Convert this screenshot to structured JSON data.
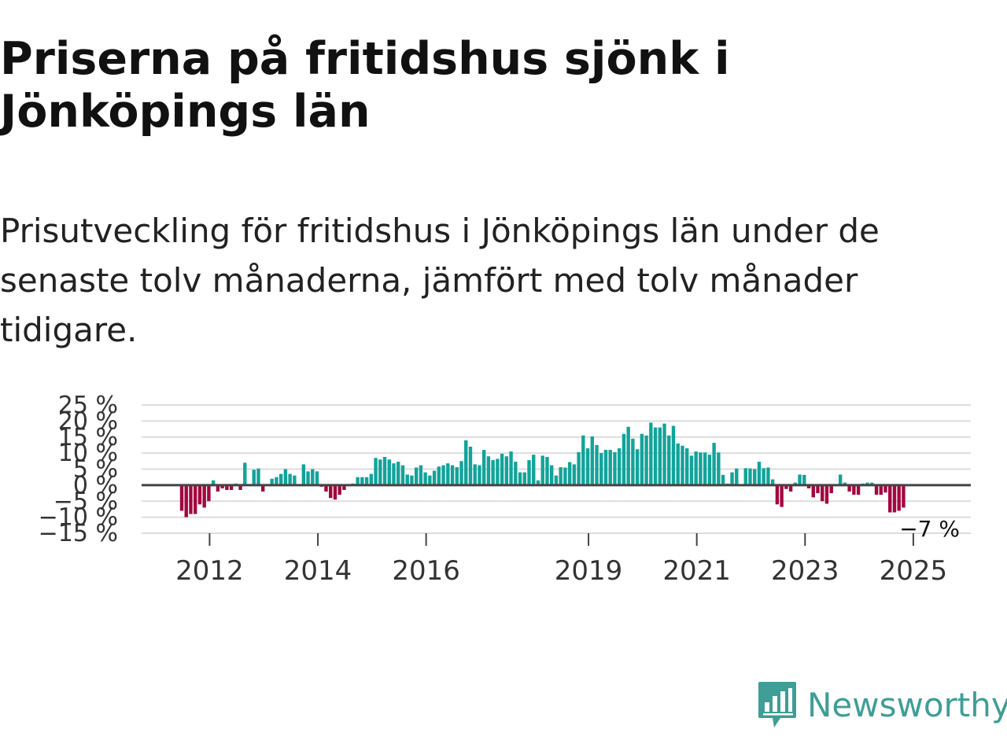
{
  "title": "Priserna på fritidshus sjönk i Jönköpings län",
  "subtitle": "Prisutveckling för fritidshus i Jönköpings län under de senaste tolv månaderna, jämfört med tolv månader tidigare.",
  "brand": {
    "name": "Newsworthy",
    "color": "#3f9e96",
    "icon": "bar-chart-speech-bubble-icon"
  },
  "colors": {
    "positive": "#12a39a",
    "negative": "#a3073f",
    "zero_line": "#444444",
    "grid": "#dddddd"
  },
  "chart_data": {
    "type": "bar",
    "title": "Priserna på fritidshus sjönk i Jönköpings län",
    "xlabel": "",
    "ylabel": "",
    "ylim": [
      -15,
      25
    ],
    "yticks": [
      25,
      20,
      15,
      10,
      5,
      0,
      -5,
      -10,
      -15
    ],
    "ytick_labels": [
      "25 %",
      "20 %",
      "15 %",
      "10 %",
      "5 %",
      "0 %",
      "−5 %",
      "−10 %",
      "−15 %"
    ],
    "xticks": [
      "2012",
      "2014",
      "2016",
      "2019",
      "2021",
      "2023",
      "2025"
    ],
    "start": "2011-07",
    "frequency": "monthly",
    "grid": true,
    "last_value_label": "−7 %",
    "values": [
      -8,
      -10,
      -9,
      -9,
      -6,
      -7,
      -5,
      1.5,
      -2,
      -1,
      -1.5,
      -1.5,
      0.5,
      -1.5,
      7,
      0.3,
      4.8,
      5.2,
      -2,
      0.2,
      2,
      2.5,
      3.5,
      5,
      3.5,
      3,
      0.3,
      6.5,
      4.3,
      5,
      4.3,
      -0.5,
      -2,
      -4,
      -4.5,
      -3,
      -1.5,
      -0.3,
      0.5,
      2.5,
      2.5,
      2.5,
      3.5,
      8.5,
      8,
      8.8,
      8,
      6.8,
      7.3,
      6.2,
      3.3,
      3,
      5.5,
      6.2,
      4,
      3,
      4.5,
      5.8,
      6.2,
      6.8,
      6.2,
      5.6,
      7.5,
      14,
      12,
      6.5,
      6.2,
      11,
      9,
      7.8,
      8.2,
      9.8,
      9,
      10.5,
      7.3,
      4,
      4,
      7.8,
      9.5,
      1.5,
      9.2,
      8.8,
      6.2,
      3,
      5.6,
      5.5,
      7.2,
      6.5,
      10.3,
      15.5,
      11.5,
      15.2,
      12.5,
      10,
      11,
      11,
      10.3,
      11.5,
      16,
      18.2,
      14.5,
      11.2,
      16,
      15.5,
      19.5,
      18,
      18,
      19.2,
      15.5,
      18.5,
      13,
      12.3,
      11.5,
      9.2,
      10.5,
      10.2,
      10.2,
      9.5,
      13.2,
      10.2,
      3.2,
      0.5,
      4,
      5.2,
      0.3,
      5.3,
      5.2,
      5,
      7.3,
      5.3,
      5.5,
      1.8,
      -6,
      -6.8,
      -1.2,
      -2,
      0.8,
      3.3,
      3.2,
      -1,
      -3.8,
      -2.5,
      -5,
      -5.8,
      -2.5,
      0.3,
      3.3,
      0.8,
      -2,
      -3,
      -3,
      0.5,
      0.8,
      0.8,
      -3,
      -3,
      -2.3,
      -8.5,
      -8.5,
      -8,
      -7
    ]
  }
}
